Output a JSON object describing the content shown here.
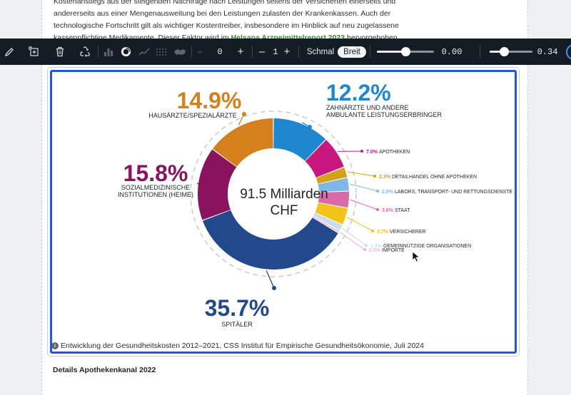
{
  "article": {
    "line1": "Kostenanstiegs aus der steigenden Nachfrage nach Leistungen seitens der Versicherten einerseits und",
    "line2": "andererseits aus einer Mengenausweitung bei den Leistungen zulasten der Krankenkassen. Auch der",
    "line3": "technologische Fortschritt gilt als wichtiger Kostentreiber, insbesondere im Hinblick auf neu zugelassene",
    "line4_pre": "kassenpflichtige Medikamente. Dieser Faktor wird im ",
    "line4_link": "Helsana Arzneimittelreport 2023",
    "line4_post": " hervorgehoben."
  },
  "toolbar": {
    "icons": [
      "pencil-icon",
      "add-element-icon",
      "trash-icon",
      "recycle-icon",
      "bar-chart-icon",
      "donut-chart-icon",
      "line-chart-icon",
      "dot-grid-icon",
      "map-icon"
    ],
    "stepper1_value": "0",
    "stepper2_value": "1",
    "width_narrow": "Schmal",
    "width_wide": "Breit",
    "slider1_value": "0.00",
    "slider2_value": "0.34",
    "slider1_fraction": 0.0,
    "slider2_fraction": 0.34,
    "minus": "–",
    "plus": "+"
  },
  "chart_data": {
    "type": "pie",
    "center_label_line1": "91.5 Milliarden",
    "center_label_line2": "CHF",
    "total_billion_chf": 91.5,
    "slices": [
      {
        "label": "ZAHNÄRZTE UND ANDERE AMBULANTE LEISTUNGSERBRINGER",
        "label1": "ZAHNÄRZTE UND ANDERE",
        "label2": "AMBULANTE LEISTUNGSERBRINGER",
        "value": 12.2,
        "text": "12.2%",
        "color": "#1f86cf",
        "big": true
      },
      {
        "label": "APOTHEKEN",
        "value": 7.0,
        "text": "7.0%",
        "color": "#c8177f"
      },
      {
        "label": "DETAILHANDEL OHNE APOTHEKEN",
        "value": 2.3,
        "text": "2.3%",
        "color": "#d4a21a"
      },
      {
        "label": "LABORS, TRANSPORT- UND RETTUNGSDIENSTE",
        "value": 2.9,
        "text": "2.9%",
        "color": "#7fb8e6"
      },
      {
        "label": "STAAT",
        "value": 3.6,
        "text": "3.6%",
        "color": "#d86aa8"
      },
      {
        "label": "VERSICHERER",
        "value": 3.7,
        "text": "3.7%",
        "color": "#f0c419"
      },
      {
        "label": "GEMEINNÜTZIGE ORGANISATIONEN",
        "value": 1.4,
        "text": "1.4%",
        "color": "#c9dcef"
      },
      {
        "label": "IMPORTE",
        "value": 0.5,
        "text": "0.5%",
        "color": "#f1b3d1"
      },
      {
        "label": "SPITÄLER",
        "value": 35.7,
        "text": "35.7%",
        "color": "#22498c",
        "big": true
      },
      {
        "label": "SOZIALMEDIZINISCHE INSTITUTIONEN (HEIME)",
        "label1": "SOZIALMEDIZINISCHE",
        "label2": "INSTITUTIONEN (HEIME)",
        "value": 15.8,
        "text": "15.8%",
        "color": "#8a135e",
        "big": true
      },
      {
        "label": "HAUSÄRZTE/SPEZIALÄRZTE",
        "value": 14.9,
        "text": "14.9%",
        "color": "#d4801d",
        "big": true
      }
    ]
  },
  "caption": "Entwicklung der Gesundheitskosten 2012–2021, CSS Institut für Empirische Gesundheitsökonomie, Juli 2024",
  "caption_icon": "info-icon",
  "details_heading": "Details Apothekenkanal 2022"
}
